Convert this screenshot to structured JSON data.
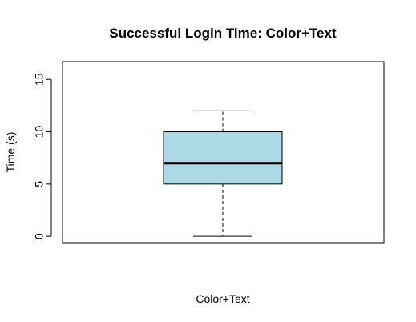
{
  "chart_data": {
    "type": "boxplot",
    "title": "Successful Login Time: Color+Text",
    "xlabel": "Color+Text",
    "ylabel": "Time (s)",
    "ylim": [
      -0.6,
      16.7
    ],
    "yticks": [
      0,
      5,
      10,
      15
    ],
    "grid": false,
    "legend": "none",
    "series": [
      {
        "min": 0,
        "q1": 5,
        "median": 7,
        "q3": 10,
        "max": 12
      }
    ],
    "colors": {
      "box_fill": "#add8e6",
      "line": "#000000"
    }
  }
}
